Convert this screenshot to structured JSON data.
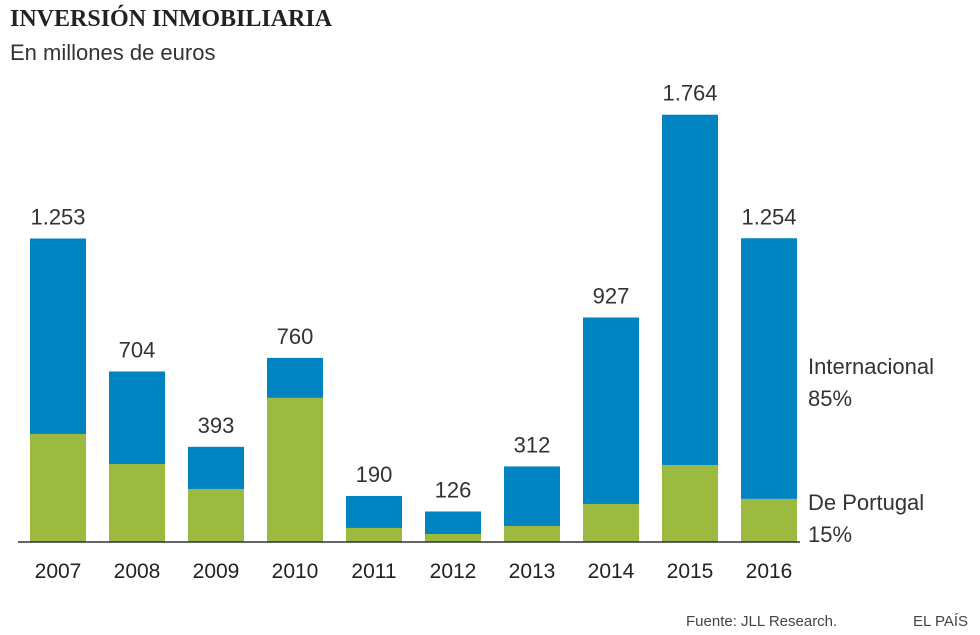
{
  "chart_data": {
    "type": "stacked-bar",
    "title": "INVERSIÓN INMOBILIARIA",
    "subtitle": "En millones de euros",
    "categories": [
      "2007",
      "2008",
      "2009",
      "2010",
      "2011",
      "2012",
      "2013",
      "2014",
      "2015",
      "2016"
    ],
    "series": [
      {
        "name": "De Portugal",
        "share": "15%",
        "color": "#9cba3f",
        "values": [
          446,
          322,
          219,
          595,
          58,
          33,
          66,
          157,
          318,
          178
        ]
      },
      {
        "name": "Internacional",
        "share": "85%",
        "color": "#0083c1",
        "values": [
          807,
          382,
          174,
          165,
          132,
          93,
          246,
          770,
          1446,
          1076
        ]
      }
    ],
    "totals": {
      "values": [
        1253,
        704,
        393,
        760,
        190,
        126,
        312,
        927,
        1764,
        1254
      ],
      "value_labels": [
        "1.253",
        "704",
        "393",
        "760",
        "190",
        "126",
        "312",
        "927",
        "1.764",
        "1.254"
      ]
    },
    "ylim": [
      0,
      1800
    ],
    "source": "Fuente: JLL Research.",
    "brand": "EL PAÍS"
  }
}
